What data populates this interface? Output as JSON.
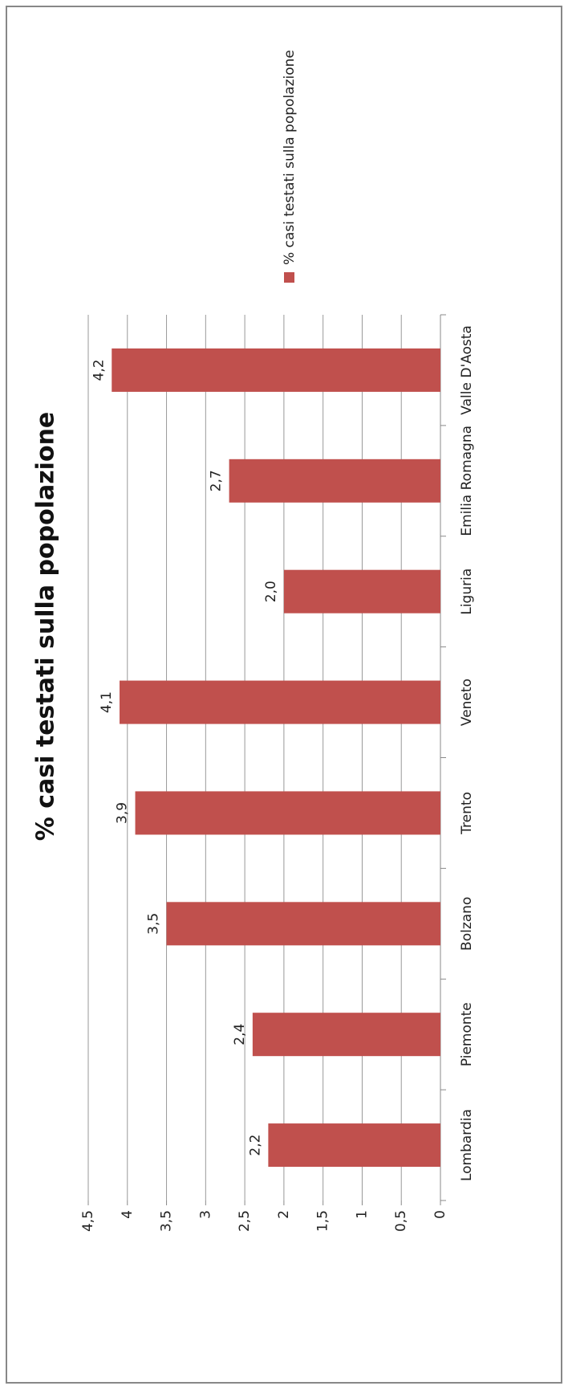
{
  "chart_data": {
    "type": "bar",
    "orientation": "horizontal",
    "title": "% casi testati sulla popolazione",
    "categories": [
      "Lombardia",
      "Piemonte",
      "Bolzano",
      "Trento",
      "Veneto",
      "Liguria",
      "Emilia Romagna",
      "Valle D'Aosta"
    ],
    "series": [
      {
        "name": "% casi testati sulla popolazione",
        "color": "#c0504d",
        "values": [
          2.2,
          2.4,
          3.5,
          3.9,
          4.1,
          2.0,
          2.7,
          4.2
        ],
        "value_labels": [
          "2,2",
          "2,4",
          "3,5",
          "3,9",
          "4,1",
          "2,0",
          "2,7",
          "4,2"
        ]
      }
    ],
    "xlim": [
      0,
      4.5
    ],
    "xticks": [
      0,
      {
        "value": 0.5,
        "label": "0,5"
      },
      1,
      {
        "value": 1.5,
        "label": "1,5"
      },
      2,
      {
        "value": 2.5,
        "label": "2,5"
      },
      3,
      {
        "value": 3.5,
        "label": "3,5"
      },
      4,
      {
        "value": 4.5,
        "label": "4,5"
      }
    ],
    "grid": true,
    "legend": "top"
  }
}
